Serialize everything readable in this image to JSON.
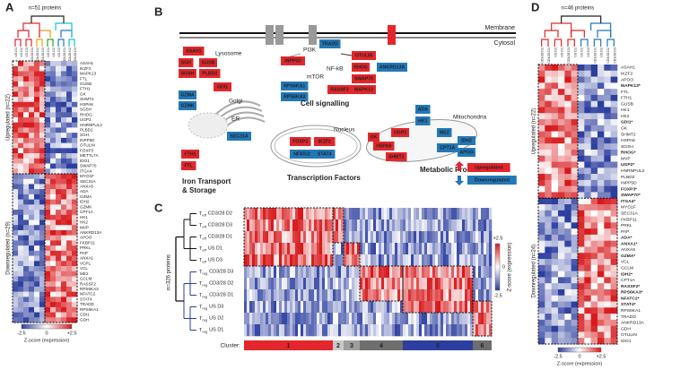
{
  "panel_a": {
    "label": "A",
    "protein_count": "n=51 proteins",
    "columns": [
      "US D1",
      "US D2",
      "US D3",
      "CD3/28 D1",
      "CD3/28 D2",
      "CD3/28 D3",
      "US D1",
      "US D2",
      "US D3",
      "CD3/28 D1",
      "CD3/28 D2",
      "CD3/28 D3"
    ],
    "genes": [
      "ASAH1",
      "IKZF2",
      "MAPK13",
      "FTL",
      "GUSB",
      "FTH1",
      "GK",
      "SHMT2",
      "HSPA8",
      "SGSH",
      "RHOG",
      "UGP2",
      "HNRNPUL2",
      "PLBD2",
      "SGH",
      "INPP5D",
      "OTULIN",
      "FOXP3",
      "METTL7A",
      "IDO1",
      "SWAP70",
      "ITGA4",
      "MYO1F",
      "SEC31A",
      "ANXA5",
      "ADA",
      "GZMA",
      "IDH2",
      "GZMK",
      "CPT1A",
      "HK1",
      "HK2",
      "MVP",
      "ANKRD13A",
      "APOO",
      "FKBP11",
      "PRKL",
      "PAP",
      "ANXA1",
      "VCPL",
      "VCL",
      "ME2",
      "GCLM",
      "RASSF2",
      "RPS6KA3",
      "NFATC2",
      "STAT4",
      "TRADD",
      "RPS6KA1",
      "GDI1",
      "GDH"
    ],
    "upregulated": "Upregulated (n=22)",
    "downregulated": "Downregulated (n=29)",
    "scale": {
      "min": "-2.5",
      "mid": "0",
      "max": "+2.5",
      "title": "Z-score (expression)"
    }
  },
  "panel_b": {
    "label": "B",
    "membrane": "Membrane",
    "cytosol": "Cytosol",
    "boxes": [
      {
        "label": "ASAH1",
        "color": "#e3262b"
      },
      {
        "label": "SGH",
        "color": "#e3262b"
      },
      {
        "label": "GUSB",
        "color": "#e3262b"
      },
      {
        "label": "SGSH",
        "color": "#e3262b"
      },
      {
        "label": "PLBD2",
        "color": "#e3262b"
      },
      {
        "label": "GDI1",
        "color": "#e3262b"
      },
      {
        "label": "GZMA",
        "color": "#2378b8"
      },
      {
        "label": "GZMK",
        "color": "#2378b8"
      },
      {
        "label": "SEC31A",
        "color": "#2378b8"
      },
      {
        "label": "FTH1",
        "color": "#e3262b"
      },
      {
        "label": "FTL",
        "color": "#e3262b"
      },
      {
        "label": "INPP5D",
        "color": "#e3262b"
      },
      {
        "label": "RPS6KA1",
        "color": "#2378b8"
      },
      {
        "label": "RPS6KA3",
        "color": "#2378b8"
      },
      {
        "label": "TRADD",
        "color": "#2378b8"
      },
      {
        "label": "OTULIN",
        "color": "#e3262b"
      },
      {
        "label": "RHOG",
        "color": "#e3262b"
      },
      {
        "label": "ANKRD13A",
        "color": "#2378b8"
      },
      {
        "label": "SWAP70",
        "color": "#e3262b"
      },
      {
        "label": "RASSF2",
        "color": "#e3262b"
      },
      {
        "label": "MAPK13",
        "color": "#e3262b"
      },
      {
        "label": "ADA",
        "color": "#2378b8"
      },
      {
        "label": "HK1",
        "color": "#2378b8"
      },
      {
        "label": "GK",
        "color": "#e3262b"
      },
      {
        "label": "UGP2",
        "color": "#e3262b"
      },
      {
        "label": "HSPA8",
        "color": "#e3262b"
      },
      {
        "label": "SHMT2",
        "color": "#e3262b"
      },
      {
        "label": "ME2",
        "color": "#2378b8"
      },
      {
        "label": "IDH2",
        "color": "#2378b8"
      },
      {
        "label": "CPT1A",
        "color": "#2378b8"
      },
      {
        "label": "APOO",
        "color": "#2378b8"
      },
      {
        "label": "FOXP3",
        "color": "#e3262b"
      },
      {
        "label": "IKZF2",
        "color": "#e3262b"
      },
      {
        "label": "NFATc2",
        "color": "#2378b8"
      },
      {
        "label": "STAT4",
        "color": "#2378b8"
      }
    ],
    "regions": [
      "Lysosome",
      "Golgi",
      "ER",
      "PI3K",
      "mTOR",
      "NF-kB",
      "Cell signalling",
      "Mitochondria",
      "Metabolic Processes",
      "Nucleus",
      "Transcription Factors",
      "Iron Transport",
      "& Storage"
    ],
    "legend": [
      {
        "label": "Upregulated",
        "color": "#e3262b"
      },
      {
        "label": "Downregulated",
        "color": "#2378b8"
      }
    ]
  },
  "panel_c": {
    "label": "C",
    "protein_count": "n=326 proteins",
    "rows": [
      {
        "cell": "T",
        "subset": "eff",
        "condition": "CD3/28 D2"
      },
      {
        "cell": "T",
        "subset": "eff",
        "condition": "CD3/28 D3"
      },
      {
        "cell": "T",
        "subset": "eff",
        "condition": "CD3/28 D1"
      },
      {
        "cell": "T",
        "subset": "eff",
        "condition": "US D1"
      },
      {
        "cell": "T",
        "subset": "eff",
        "condition": "US D3"
      },
      {
        "cell": "T",
        "subset": "reg",
        "condition": "CD3/28 D3"
      },
      {
        "cell": "T",
        "subset": "reg",
        "condition": "CD3/28 D2"
      },
      {
        "cell": "T",
        "subset": "reg",
        "condition": "CD3/28 D1"
      },
      {
        "cell": "T",
        "subset": "reg",
        "condition": "US D3"
      },
      {
        "cell": "T",
        "subset": "reg",
        "condition": "US D2"
      },
      {
        "cell": "T",
        "subset": "reg",
        "condition": "US D1"
      }
    ],
    "cluster_title": "Cluster:",
    "clusters": [
      {
        "label": "1",
        "color": "#e3262b"
      },
      {
        "label": "2",
        "color": "#c8c8c8"
      },
      {
        "label": "3",
        "color": "#9e9e9e"
      },
      {
        "label": "4",
        "color": "#6e6e6e"
      },
      {
        "label": "5",
        "color": "#2c3e9e"
      },
      {
        "label": "6",
        "color": "#6e6e6e"
      }
    ],
    "scale": {
      "min": "-2.5",
      "mid": "0",
      "max": "+2.5",
      "title": "Z-score (expression)"
    }
  },
  "panel_d": {
    "label": "D",
    "protein_count": "n=46 proteins",
    "columns": [
      "CD3/28 D2",
      "CD3/28 D1",
      "US D3",
      "US D1",
      "CD3/28 D3",
      "US D2",
      "US D1",
      "US D3",
      "CD3/28 D1",
      "US D2",
      "CD3/28 D2",
      "CD3/28 D3"
    ],
    "genes": [
      {
        "name": "ASAH1",
        "color": "#222"
      },
      {
        "name": "IKZF2",
        "color": "#222"
      },
      {
        "name": "APOO",
        "color": "#e3262b"
      },
      {
        "name": "MAPK13*",
        "color": "#222"
      },
      {
        "name": "FTL",
        "color": "#222"
      },
      {
        "name": "FTH1",
        "color": "#222"
      },
      {
        "name": "GUSB",
        "color": "#222"
      },
      {
        "name": "HK1",
        "color": "#e3262b"
      },
      {
        "name": "HK2",
        "color": "#e3262b"
      },
      {
        "name": "GDI1*",
        "color": "#222"
      },
      {
        "name": "GK",
        "color": "#222"
      },
      {
        "name": "SHMT2",
        "color": "#222"
      },
      {
        "name": "HSPA8",
        "color": "#222"
      },
      {
        "name": "SGSH",
        "color": "#222"
      },
      {
        "name": "RHOG*",
        "color": "#222"
      },
      {
        "name": "MVP",
        "color": "#e3262b"
      },
      {
        "name": "UGP2*",
        "color": "#222"
      },
      {
        "name": "HNRNPUL2",
        "color": "#222"
      },
      {
        "name": "PLBD2",
        "color": "#222"
      },
      {
        "name": "INPP5D",
        "color": "#222"
      },
      {
        "name": "FOXP3*",
        "color": "#222"
      },
      {
        "name": "SWAP70*",
        "color": "#222"
      },
      {
        "name": "ITGA4*",
        "color": "#222"
      },
      {
        "name": "MYO1F",
        "color": "#222"
      },
      {
        "name": "SEC31A",
        "color": "#222"
      },
      {
        "name": "FKBP11",
        "color": "#222"
      },
      {
        "name": "PRKL",
        "color": "#222"
      },
      {
        "name": "PAP",
        "color": "#222"
      },
      {
        "name": "ADA*",
        "color": "#222"
      },
      {
        "name": "ANXA1*",
        "color": "#222"
      },
      {
        "name": "ANXA5",
        "color": "#222"
      },
      {
        "name": "GZMA*",
        "color": "#222"
      },
      {
        "name": "VCL",
        "color": "#222"
      },
      {
        "name": "GCLM",
        "color": "#222"
      },
      {
        "name": "IDH2*",
        "color": "#222"
      },
      {
        "name": "CPT1A",
        "color": "#222"
      },
      {
        "name": "RASSF2*",
        "color": "#222"
      },
      {
        "name": "RPS6KA3*",
        "color": "#222"
      },
      {
        "name": "NFATC2*",
        "color": "#222"
      },
      {
        "name": "STAT4*",
        "color": "#222"
      },
      {
        "name": "RPS6KA1",
        "color": "#222"
      },
      {
        "name": "TRADD",
        "color": "#222"
      },
      {
        "name": "ANKRD13A",
        "color": "#222"
      },
      {
        "name": "GDH",
        "color": "#e3262b"
      },
      {
        "name": "OTULIN",
        "color": "#e3262b"
      },
      {
        "name": "IDO1",
        "color": "#e3262b"
      }
    ],
    "upregulated": "Upregulated (n=22)",
    "downregulated": "Downregulated (n=24)",
    "scale": {
      "min": "-2.5",
      "mid": "0",
      "max": "+2.5",
      "title": "Z-score (expression)"
    }
  }
}
